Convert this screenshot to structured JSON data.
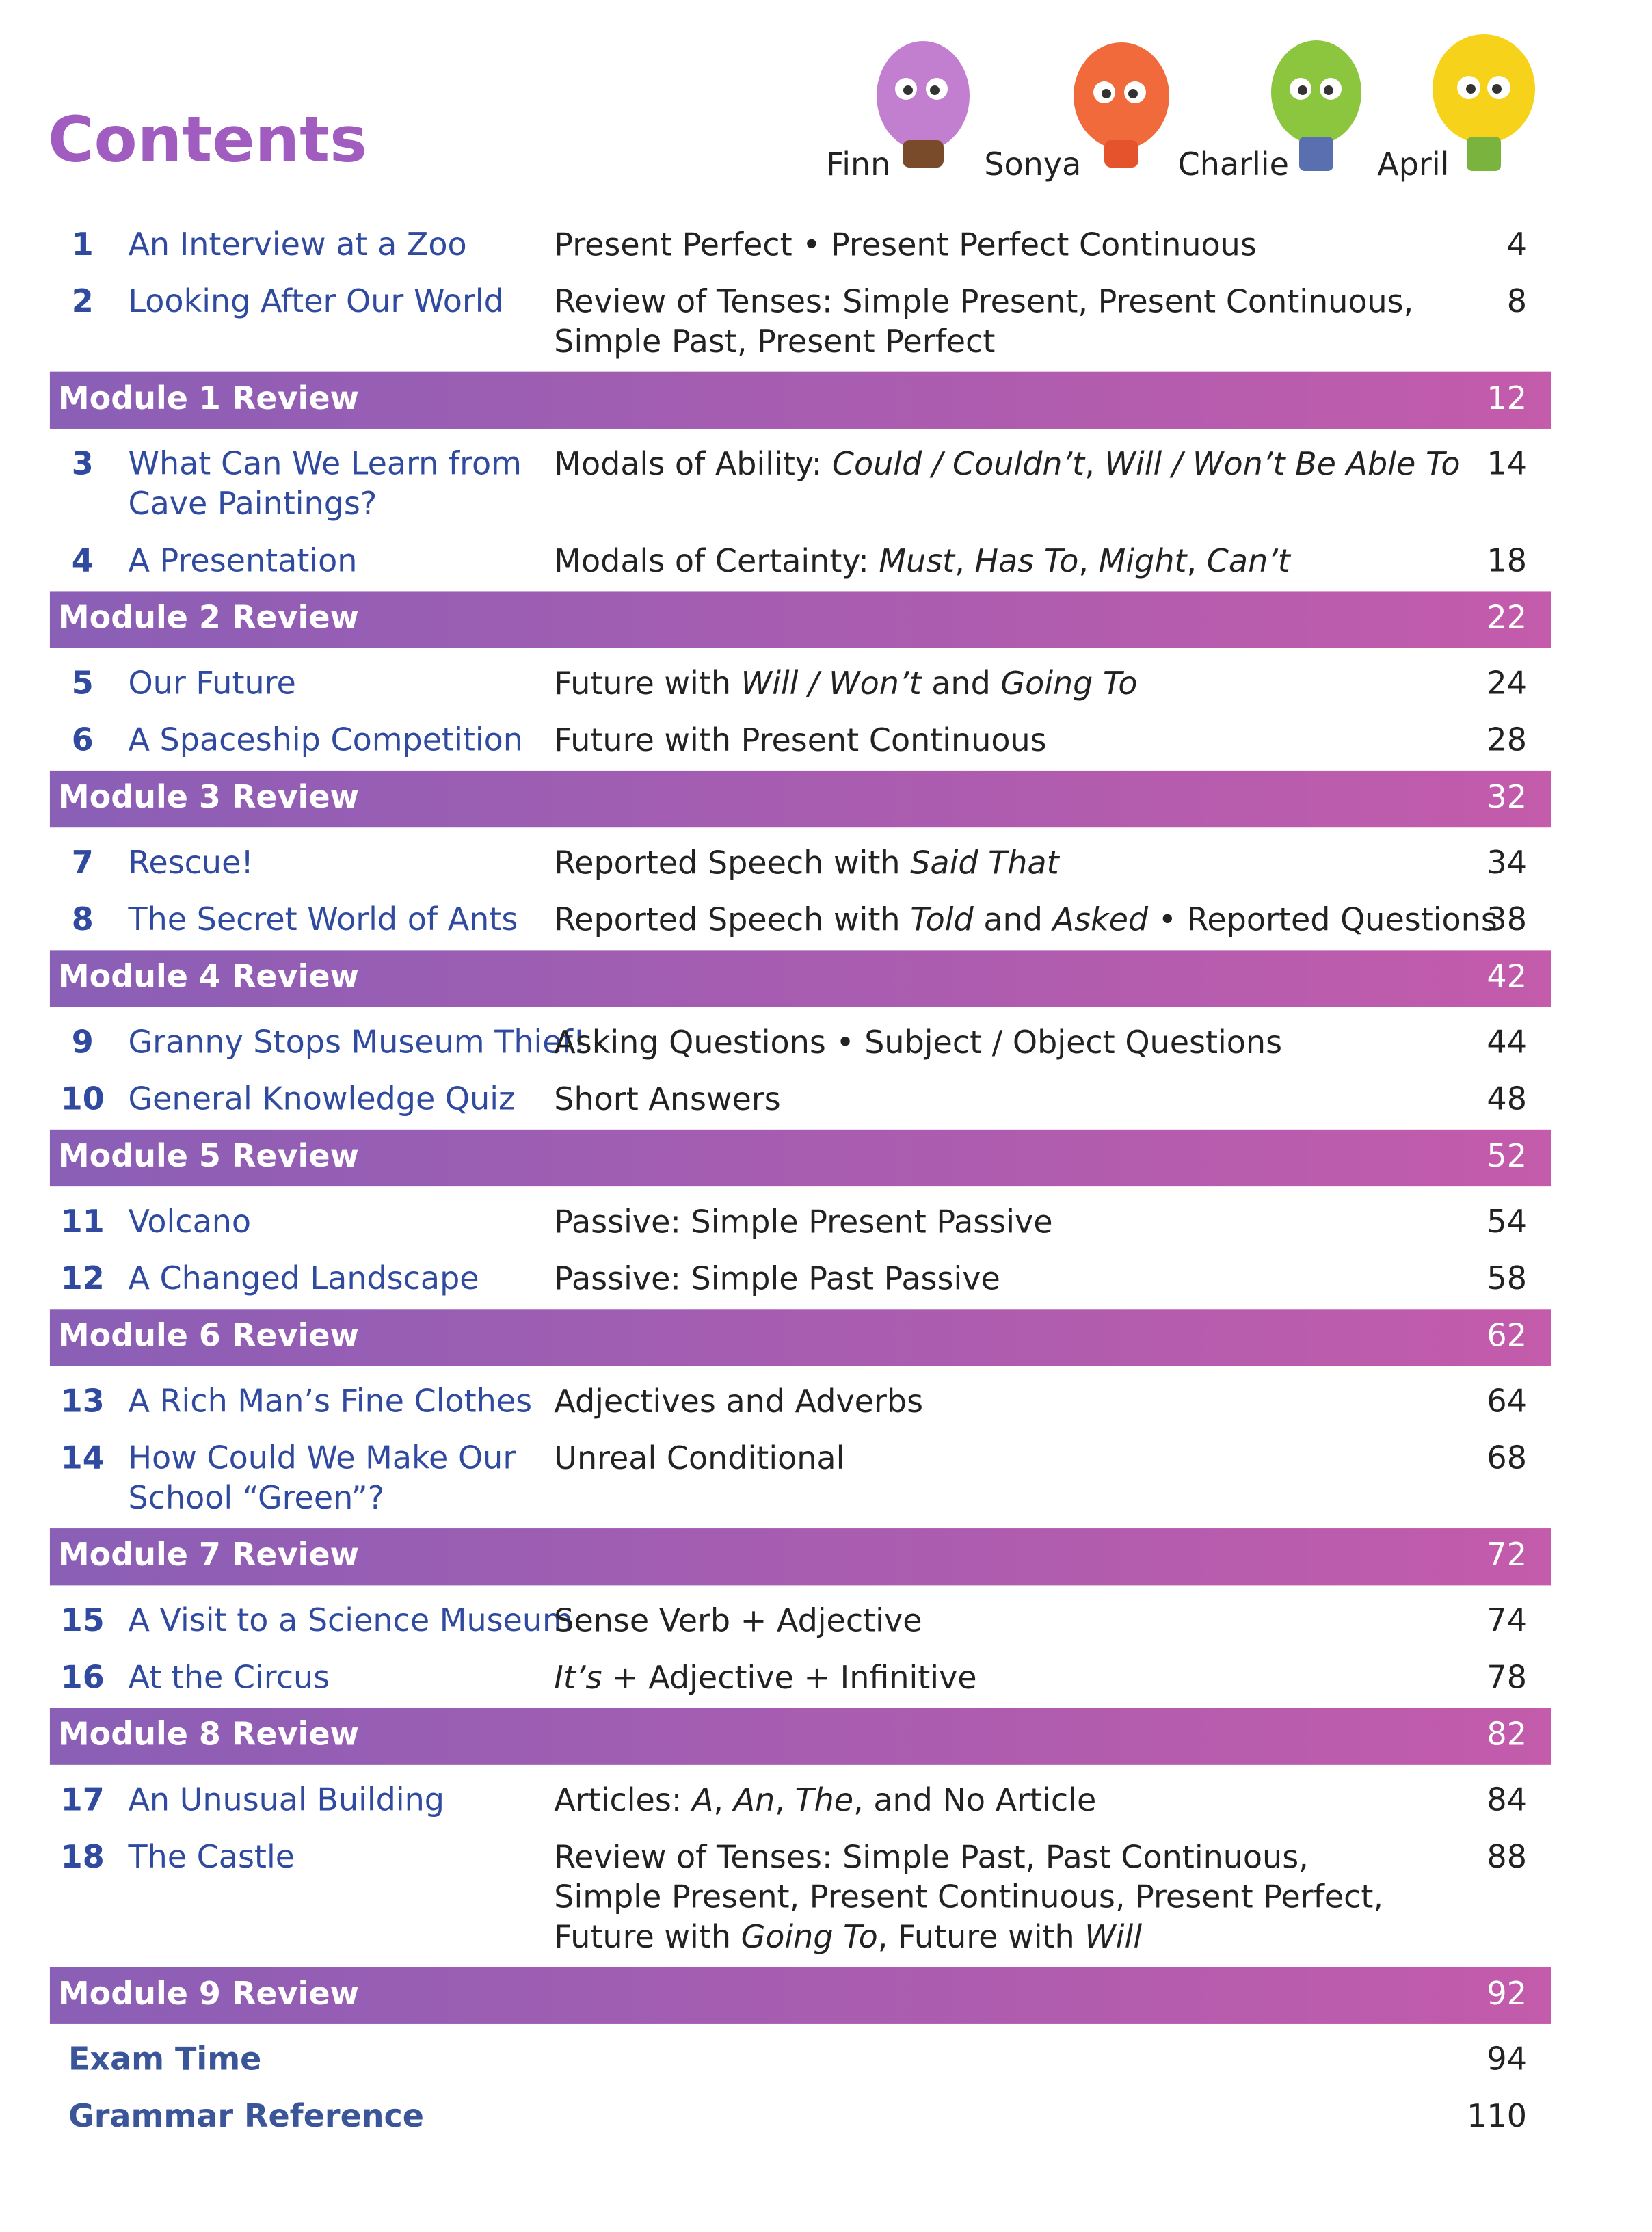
{
  "header": {
    "title": "Contents",
    "characters": [
      "Finn",
      "Sonya",
      "Charlie",
      "April"
    ]
  },
  "entries": [
    {
      "kind": "unit",
      "number": 1,
      "title": [
        "An Interview at a Zoo"
      ],
      "grammar": [
        [
          {
            "text": "Present Perfect • Present Perfect Continuous"
          }
        ]
      ],
      "page": 4
    },
    {
      "kind": "unit",
      "number": 2,
      "title": [
        "Looking After Our World"
      ],
      "grammar": [
        [
          {
            "text": "Review of Tenses: Simple Present, Present Continuous,"
          }
        ],
        [
          {
            "text": "Simple Past, Present Perfect"
          }
        ]
      ],
      "page": 8
    },
    {
      "kind": "review",
      "title": [
        "Module 1 Review"
      ],
      "page": 12
    },
    {
      "kind": "unit",
      "number": 3,
      "title": [
        "What Can We Learn from",
        "Cave Paintings?"
      ],
      "grammar": [
        [
          {
            "text": "Modals of Ability: "
          },
          {
            "text": "Could / Couldn’t",
            "italic": true
          },
          {
            "text": ", "
          },
          {
            "text": "Will / Won’t Be Able To",
            "italic": true
          }
        ]
      ],
      "page": 14
    },
    {
      "kind": "unit",
      "number": 4,
      "title": [
        "A Presentation"
      ],
      "grammar": [
        [
          {
            "text": "Modals of Certainty: "
          },
          {
            "text": "Must",
            "italic": true
          },
          {
            "text": ", "
          },
          {
            "text": "Has To",
            "italic": true
          },
          {
            "text": ", "
          },
          {
            "text": "Might",
            "italic": true
          },
          {
            "text": ", "
          },
          {
            "text": "Can’t",
            "italic": true
          }
        ]
      ],
      "page": 18
    },
    {
      "kind": "review",
      "title": [
        "Module 2 Review"
      ],
      "page": 22
    },
    {
      "kind": "unit",
      "number": 5,
      "title": [
        "Our Future"
      ],
      "grammar": [
        [
          {
            "text": "Future with "
          },
          {
            "text": "Will / Won’t",
            "italic": true
          },
          {
            "text": " and "
          },
          {
            "text": "Going To",
            "italic": true
          }
        ]
      ],
      "page": 24
    },
    {
      "kind": "unit",
      "number": 6,
      "title": [
        "A Spaceship Competition"
      ],
      "grammar": [
        [
          {
            "text": "Future with Present Continuous"
          }
        ]
      ],
      "page": 28
    },
    {
      "kind": "review",
      "title": [
        "Module 3 Review"
      ],
      "page": 32
    },
    {
      "kind": "unit",
      "number": 7,
      "title": [
        "Rescue!"
      ],
      "grammar": [
        [
          {
            "text": "Reported Speech with "
          },
          {
            "text": "Said That",
            "italic": true
          }
        ]
      ],
      "page": 34
    },
    {
      "kind": "unit",
      "number": 8,
      "title": [
        "The Secret World of Ants"
      ],
      "grammar": [
        [
          {
            "text": "Reported Speech with "
          },
          {
            "text": "Told",
            "italic": true
          },
          {
            "text": " and "
          },
          {
            "text": "Asked",
            "italic": true
          },
          {
            "text": " • Reported Questions"
          }
        ]
      ],
      "page": 38
    },
    {
      "kind": "review",
      "title": [
        "Module 4 Review"
      ],
      "page": 42
    },
    {
      "kind": "unit",
      "number": 9,
      "title": [
        "Granny Stops Museum Thief!"
      ],
      "grammar": [
        [
          {
            "text": "Asking Questions • Subject / Object Questions"
          }
        ]
      ],
      "page": 44
    },
    {
      "kind": "unit",
      "number": 10,
      "title": [
        "General Knowledge Quiz"
      ],
      "grammar": [
        [
          {
            "text": "Short Answers"
          }
        ]
      ],
      "page": 48
    },
    {
      "kind": "review",
      "title": [
        "Module 5 Review"
      ],
      "page": 52
    },
    {
      "kind": "unit",
      "number": 11,
      "title": [
        "Volcano"
      ],
      "grammar": [
        [
          {
            "text": "Passive: Simple Present Passive"
          }
        ]
      ],
      "page": 54
    },
    {
      "kind": "unit",
      "number": 12,
      "title": [
        "A Changed Landscape"
      ],
      "grammar": [
        [
          {
            "text": "Passive: Simple Past Passive"
          }
        ]
      ],
      "page": 58
    },
    {
      "kind": "review",
      "title": [
        "Module 6 Review"
      ],
      "page": 62
    },
    {
      "kind": "unit",
      "number": 13,
      "title": [
        "A Rich Man’s Fine Clothes"
      ],
      "grammar": [
        [
          {
            "text": "Adjectives and Adverbs"
          }
        ]
      ],
      "page": 64
    },
    {
      "kind": "unit",
      "number": 14,
      "title": [
        "How Could We Make Our",
        "School “Green”?"
      ],
      "grammar": [
        [
          {
            "text": "Unreal Conditional"
          }
        ]
      ],
      "page": 68
    },
    {
      "kind": "review",
      "title": [
        "Module 7 Review"
      ],
      "page": 72
    },
    {
      "kind": "unit",
      "number": 15,
      "title": [
        "A Visit to a Science Museum"
      ],
      "grammar": [
        [
          {
            "text": "Sense Verb + Adjective"
          }
        ]
      ],
      "page": 74
    },
    {
      "kind": "unit",
      "number": 16,
      "title": [
        "At the Circus"
      ],
      "grammar": [
        [
          {
            "text": "It’s",
            "italic": true
          },
          {
            "text": " + Adjective + Infinitive"
          }
        ]
      ],
      "page": 78
    },
    {
      "kind": "review",
      "title": [
        "Module 8 Review"
      ],
      "page": 82
    },
    {
      "kind": "unit",
      "number": 17,
      "title": [
        "An Unusual Building"
      ],
      "grammar": [
        [
          {
            "text": "Articles: "
          },
          {
            "text": "A",
            "italic": true
          },
          {
            "text": ", "
          },
          {
            "text": "An",
            "italic": true
          },
          {
            "text": ", "
          },
          {
            "text": "The",
            "italic": true
          },
          {
            "text": ", and No Article"
          }
        ]
      ],
      "page": 84
    },
    {
      "kind": "unit",
      "number": 18,
      "title": [
        "The Castle"
      ],
      "grammar": [
        [
          {
            "text": "Review of Tenses: Simple Past, Past Continuous,"
          }
        ],
        [
          {
            "text": "Simple Present, Present Continuous, Present Perfect,"
          }
        ],
        [
          {
            "text": "Future with "
          },
          {
            "text": "Going To",
            "italic": true
          },
          {
            "text": ", Future with "
          },
          {
            "text": "Will",
            "italic": true
          }
        ]
      ],
      "page": 88
    },
    {
      "kind": "review",
      "title": [
        "Module 9 Review"
      ],
      "page": 92
    }
  ],
  "extras": [
    {
      "title": "Exam Time",
      "page": 94
    },
    {
      "title": "Grammar Reference",
      "page": 110
    }
  ]
}
